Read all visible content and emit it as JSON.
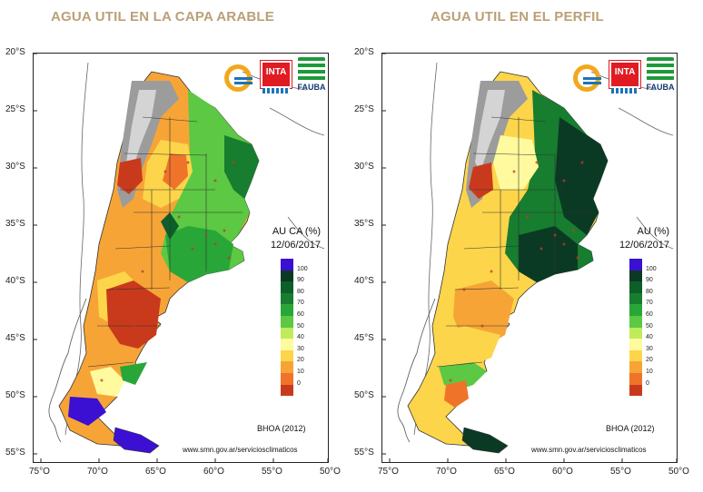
{
  "panels": [
    {
      "title": "AGUA UTIL EN LA CAPA ARABLE",
      "legend_title": "AU CA (%)",
      "legend_date": "12/06/2017",
      "mode": "arable"
    },
    {
      "title": "AGUA UTIL EN EL PERFIL",
      "legend_title": "AU (%)",
      "legend_date": "12/06/2017",
      "mode": "profile"
    }
  ],
  "latitude_labels": [
    "20°S",
    "25°S",
    "30°S",
    "35°S",
    "40°S",
    "45°S",
    "50°S",
    "55°S"
  ],
  "longitude_labels": [
    "75°O",
    "70°O",
    "65°O",
    "60°O",
    "55°O",
    "50°O"
  ],
  "legend_ticks": [
    "100",
    "90",
    "80",
    "70",
    "60",
    "50",
    "40",
    "30",
    "20",
    "10",
    "0"
  ],
  "legend_colors": [
    "#3b10d2",
    "#0b3a24",
    "#0e5e2a",
    "#177d2f",
    "#29a638",
    "#5cc843",
    "#bfec5a",
    "#fffa9d",
    "#fdd54a",
    "#f7a437",
    "#f0732a",
    "#c93a1c"
  ],
  "credits": {
    "bhoa": "BHOA (2012)",
    "website": "www.smn.gov.ar/serviciosclimaticos"
  },
  "logos": {
    "inta": "INTA",
    "fauba": "FAUBA"
  }
}
